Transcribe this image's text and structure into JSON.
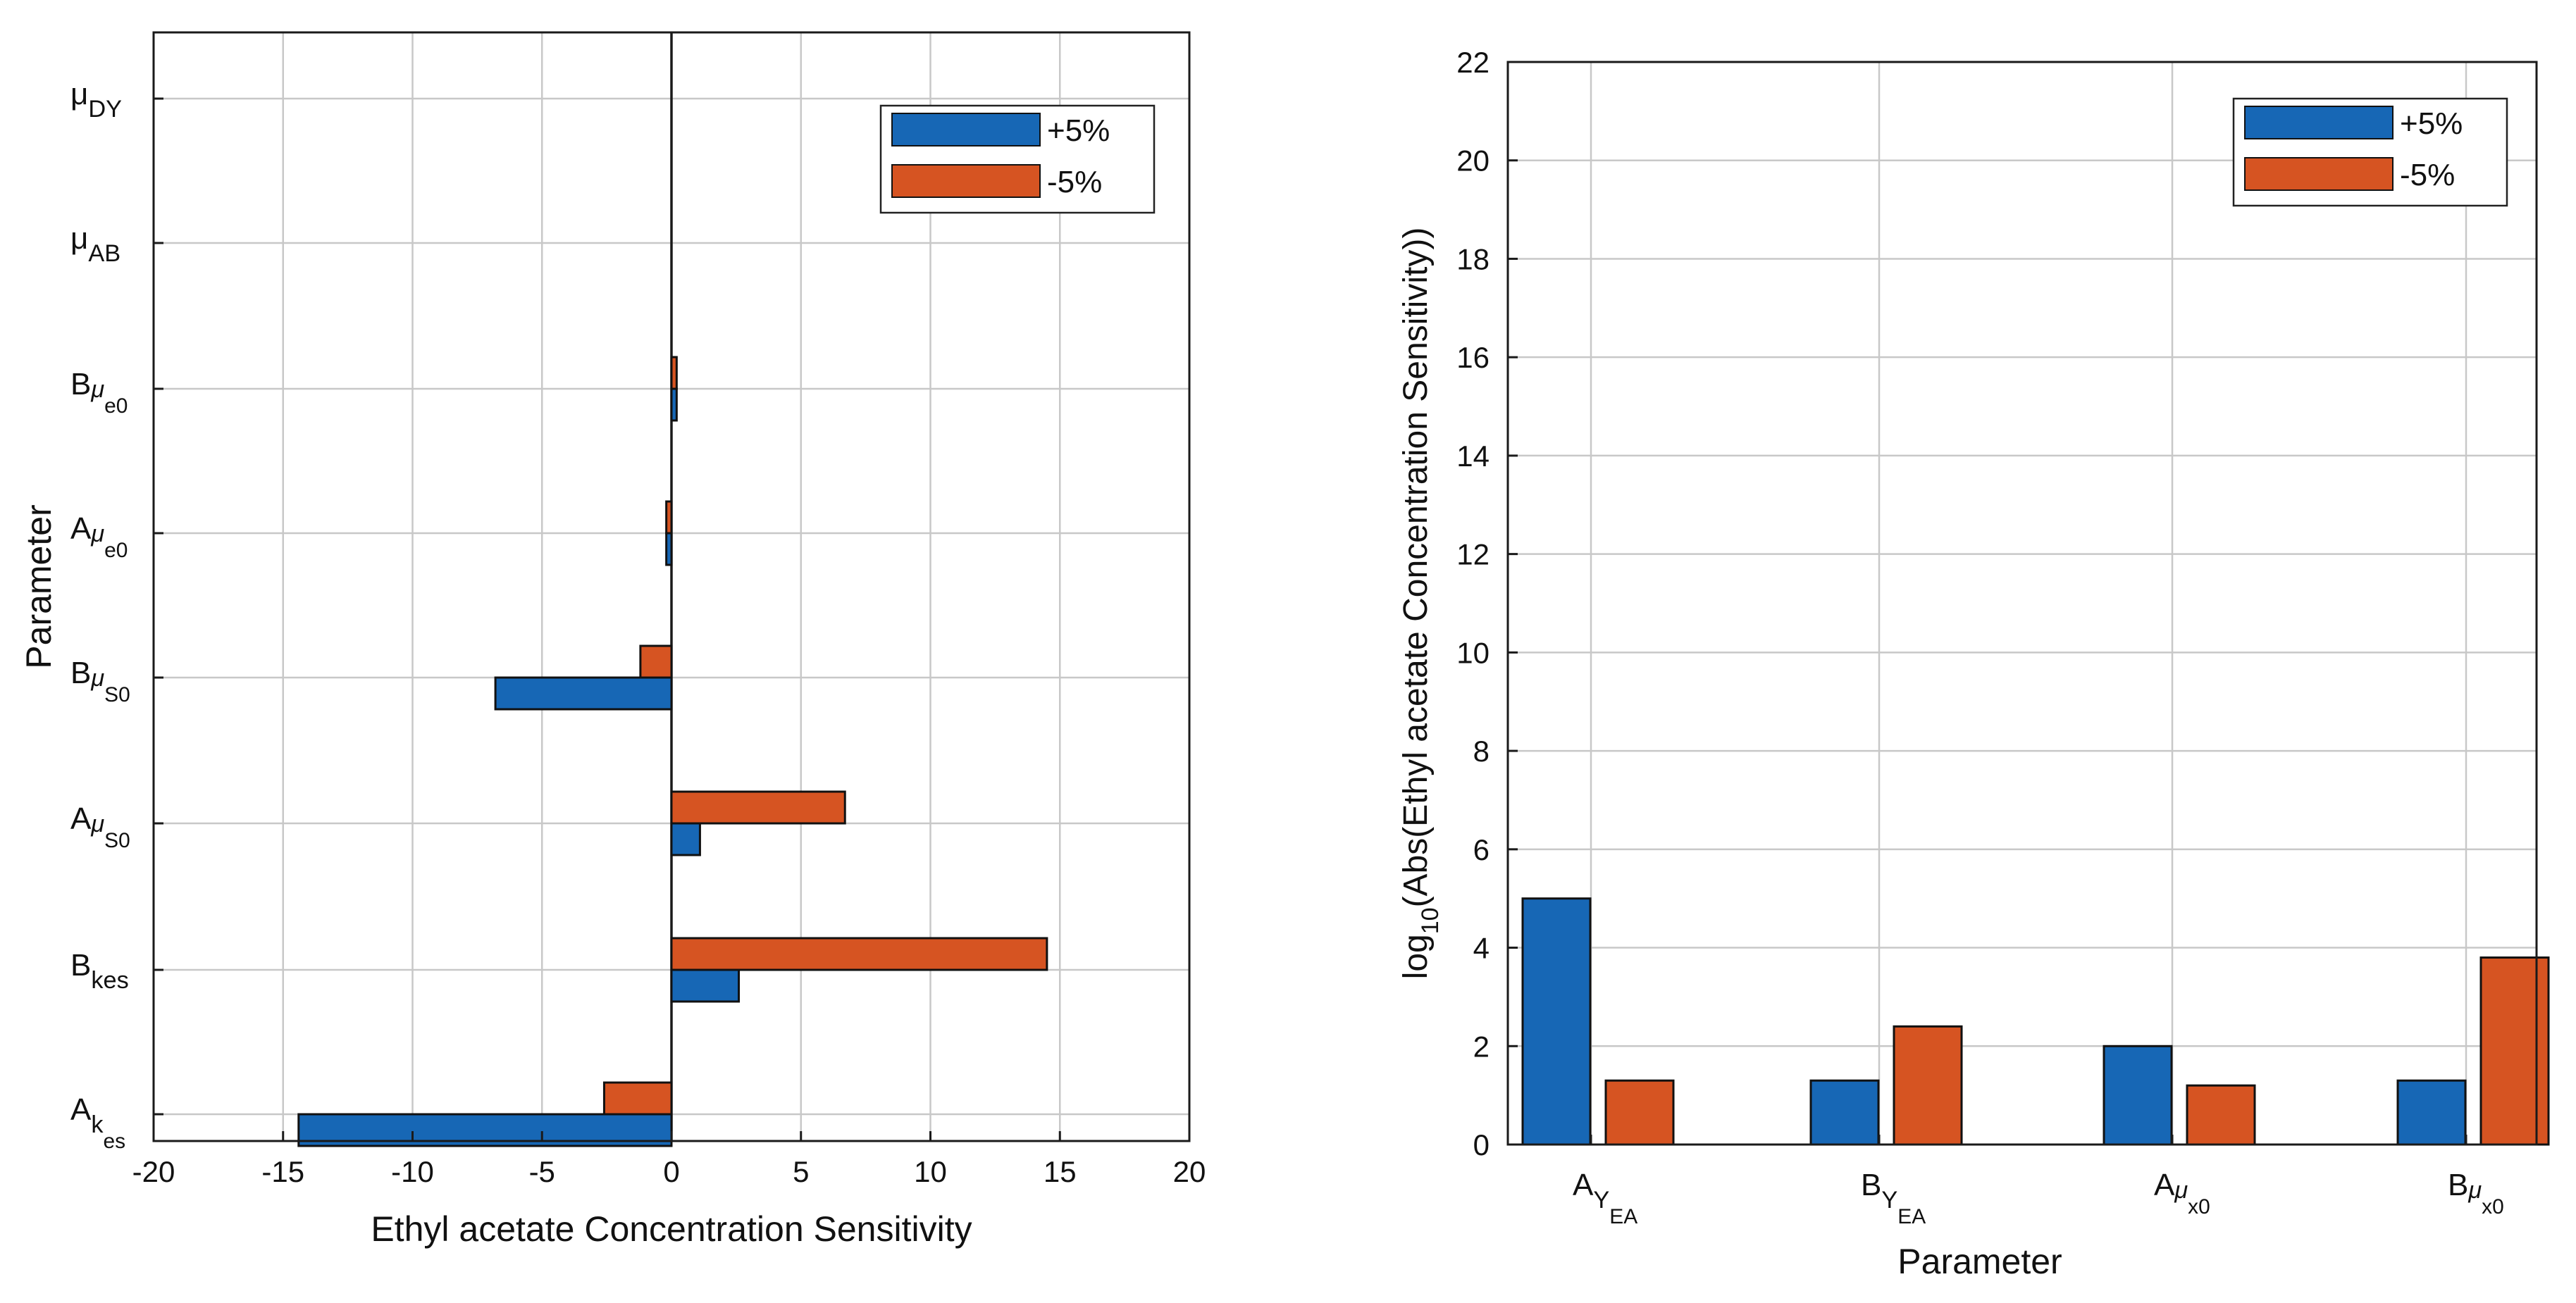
{
  "colors": {
    "plus": "#1767b5",
    "minus": "#d65422",
    "grid": "#c8c8c8",
    "axis": "#1a1a1a"
  },
  "chart_data": [
    {
      "type": "bar",
      "orientation": "horizontal",
      "title": "",
      "xlabel": "Ethyl acetate Concentration Sensitivity",
      "ylabel": "Parameter",
      "xlim": [
        -20,
        20
      ],
      "xticks": [
        -20,
        -15,
        -10,
        -5,
        0,
        5,
        10,
        15,
        20
      ],
      "grid": true,
      "legend_position": "top-right",
      "categories": [
        {
          "main": "A",
          "sub": "k",
          "subsub": "es"
        },
        {
          "main": "B",
          "sub": "kes",
          "subsub": ""
        },
        {
          "main": "A",
          "sub": "μ",
          "subsub": "S0"
        },
        {
          "main": "B",
          "sub": "μ",
          "subsub": "S0"
        },
        {
          "main": "A",
          "sub": "μ",
          "subsub": "e0"
        },
        {
          "main": "B",
          "sub": "μ",
          "subsub": "e0"
        },
        {
          "main": "μ",
          "sub": "AB",
          "subsub": ""
        },
        {
          "main": "μ",
          "sub": "DY",
          "subsub": ""
        }
      ],
      "series": [
        {
          "name": "+5%",
          "color_key": "plus",
          "values": [
            -14.4,
            2.6,
            1.1,
            -6.8,
            -0.2,
            0.2,
            0,
            0
          ]
        },
        {
          "name": "-5%",
          "color_key": "minus",
          "values": [
            -2.6,
            14.5,
            6.7,
            -1.2,
            -0.2,
            0.2,
            0,
            0
          ]
        }
      ]
    },
    {
      "type": "bar",
      "orientation": "vertical",
      "title": "",
      "xlabel": "Parameter",
      "ylabel": {
        "prefix": "log",
        "sub": "10",
        "rest": "(Abs(Ethyl acetate Concentration Sensitivity))"
      },
      "ylim": [
        0,
        22
      ],
      "yticks": [
        0,
        2,
        4,
        6,
        8,
        10,
        12,
        14,
        16,
        18,
        20,
        22
      ],
      "grid": true,
      "legend_position": "top-right",
      "categories": [
        {
          "main": "A",
          "sub": "Y",
          "subsub": "EA"
        },
        {
          "main": "B",
          "sub": "Y",
          "subsub": "EA"
        },
        {
          "main": "A",
          "sub": "μ",
          "subsub": "x0"
        },
        {
          "main": "B",
          "sub": "μ",
          "subsub": "x0"
        }
      ],
      "series": [
        {
          "name": "+5%",
          "color_key": "plus",
          "values": [
            5.0,
            1.3,
            2.0,
            1.3
          ]
        },
        {
          "name": "-5%",
          "color_key": "minus",
          "values": [
            1.3,
            2.4,
            1.2,
            3.8
          ]
        }
      ]
    }
  ]
}
